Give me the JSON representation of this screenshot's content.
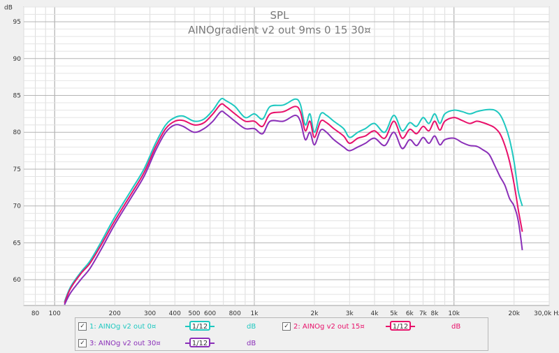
{
  "chart_data": {
    "type": "line",
    "title": "SPL",
    "subtitle": "AINOgradient v2 out 9ms 0 15 30¤",
    "ylabel": "dB",
    "xlabel": "Hz",
    "x_scale": "log",
    "xlim": [
      70,
      30000
    ],
    "ylim": [
      56.5,
      97
    ],
    "x_ticks": [
      {
        "v": 80,
        "label": "80"
      },
      {
        "v": 100,
        "label": "100"
      },
      {
        "v": 200,
        "label": "200"
      },
      {
        "v": 300,
        "label": "300"
      },
      {
        "v": 400,
        "label": "400"
      },
      {
        "v": 500,
        "label": "500"
      },
      {
        "v": 600,
        "label": "600"
      },
      {
        "v": 800,
        "label": "800"
      },
      {
        "v": 1000,
        "label": "1k"
      },
      {
        "v": 2000,
        "label": "2k"
      },
      {
        "v": 3000,
        "label": "3k"
      },
      {
        "v": 4000,
        "label": "4k"
      },
      {
        "v": 5000,
        "label": "5k"
      },
      {
        "v": 6000,
        "label": "6k"
      },
      {
        "v": 7000,
        "label": "7k"
      },
      {
        "v": 8000,
        "label": "8k"
      },
      {
        "v": 10000,
        "label": "10k"
      },
      {
        "v": 20000,
        "label": "20k"
      },
      {
        "v": 30000,
        "label": "30,0k Hz"
      }
    ],
    "y_ticks": [
      60,
      65,
      70,
      75,
      80,
      85,
      90,
      95
    ],
    "grid": true,
    "series": [
      {
        "name": "1: AINOg v2 out 0¤",
        "color": "#1ec8c0",
        "x": [
          112,
          120,
          135,
          150,
          170,
          200,
          240,
          280,
          320,
          360,
          400,
          440,
          500,
          560,
          620,
          680,
          720,
          800,
          900,
          1000,
          1100,
          1200,
          1400,
          1600,
          1700,
          1800,
          1900,
          2000,
          2150,
          2300,
          2500,
          2800,
          3000,
          3300,
          3600,
          4000,
          4500,
          5000,
          5500,
          6000,
          6500,
          7000,
          7500,
          8000,
          8500,
          9000,
          10000,
          11000,
          12000,
          13000,
          14000,
          15000,
          16000,
          17000,
          18000,
          19000,
          20000,
          21000,
          22000
        ],
        "y": [
          57,
          59,
          61,
          62.5,
          65,
          68.5,
          72,
          75,
          78.5,
          81,
          82,
          82.2,
          81.5,
          81.8,
          83,
          84.5,
          84.3,
          83.5,
          82,
          82.5,
          81.8,
          83.5,
          83.7,
          84.5,
          83.8,
          81,
          82.5,
          80,
          82.5,
          82.3,
          81.5,
          80.5,
          79.3,
          80,
          80.5,
          81.2,
          80,
          82.3,
          80.2,
          81.3,
          80.8,
          82,
          81.2,
          82.5,
          81.2,
          82.5,
          83,
          82.8,
          82.5,
          82.8,
          83,
          83.1,
          83,
          82.4,
          81,
          79,
          76,
          72,
          70
        ]
      },
      {
        "name": "2: AINOg v2 out 15¤",
        "color": "#e8106a",
        "x": [
          112,
          120,
          135,
          150,
          170,
          200,
          240,
          280,
          320,
          360,
          400,
          440,
          500,
          560,
          620,
          680,
          720,
          800,
          900,
          1000,
          1100,
          1200,
          1400,
          1600,
          1700,
          1800,
          1900,
          2000,
          2150,
          2300,
          2500,
          2800,
          3000,
          3300,
          3600,
          4000,
          4500,
          5000,
          5500,
          6000,
          6500,
          7000,
          7500,
          8000,
          8500,
          9000,
          10000,
          11000,
          12000,
          13000,
          14000,
          15000,
          16000,
          17000,
          18000,
          19000,
          20000,
          21000,
          22000
        ],
        "y": [
          56.8,
          58.8,
          60.8,
          62.2,
          64.6,
          68,
          71.5,
          74.5,
          78,
          80.5,
          81.5,
          81.6,
          81,
          81.3,
          82.5,
          83.8,
          83.5,
          82.5,
          81.5,
          81.5,
          80.8,
          82.5,
          82.8,
          83.5,
          82.8,
          80.2,
          81.5,
          79.3,
          81.5,
          81.3,
          80.5,
          79.5,
          78.5,
          79.2,
          79.5,
          80.2,
          79.2,
          81.5,
          79.2,
          80.4,
          79.8,
          80.8,
          80.2,
          81.5,
          80.3,
          81.5,
          82,
          81.6,
          81.2,
          81.5,
          81.3,
          81,
          80.6,
          79.8,
          78.2,
          76,
          73,
          69.5,
          66.5
        ]
      },
      {
        "name": "3: AINOg v2 out 30¤",
        "color": "#8a2fb8",
        "x": [
          112,
          120,
          135,
          150,
          170,
          200,
          240,
          280,
          320,
          360,
          400,
          440,
          500,
          560,
          620,
          680,
          720,
          800,
          900,
          1000,
          1100,
          1200,
          1400,
          1600,
          1700,
          1800,
          1900,
          2000,
          2150,
          2300,
          2500,
          2800,
          3000,
          3300,
          3600,
          4000,
          4500,
          5000,
          5500,
          6000,
          6500,
          7000,
          7500,
          8000,
          8500,
          9000,
          10000,
          11000,
          12000,
          13000,
          14000,
          15000,
          16000,
          17000,
          18000,
          19000,
          20000,
          21000,
          22000
        ],
        "y": [
          56.6,
          58.2,
          60,
          61.5,
          64,
          67.5,
          71,
          74,
          77.5,
          80,
          81,
          80.8,
          80,
          80.5,
          81.5,
          82.8,
          82.5,
          81.5,
          80.5,
          80.5,
          79.8,
          81.5,
          81.5,
          82.3,
          81.5,
          79,
          80,
          78.3,
          80.3,
          80,
          79,
          78,
          77.5,
          78,
          78.5,
          79.2,
          78.2,
          80,
          77.8,
          79,
          78.2,
          79.3,
          78.5,
          79.5,
          78.3,
          79,
          79.2,
          78.6,
          78.2,
          78.1,
          77.6,
          77,
          75.5,
          74,
          72.8,
          71,
          70,
          68,
          64
        ]
      }
    ]
  },
  "legend": {
    "items": [
      {
        "label": "1: AINOg v2 out 0¤",
        "smoothing": "1/12",
        "unit": "dB",
        "color": "#1ec8c0",
        "checked": "✓"
      },
      {
        "label": "2: AINOg v2 out 15¤",
        "smoothing": "1/12",
        "unit": "dB",
        "color": "#e8106a",
        "checked": "✓"
      },
      {
        "label": "3: AINOg v2 out 30¤",
        "smoothing": "1/12",
        "unit": "dB",
        "color": "#8a2fb8",
        "checked": "✓"
      }
    ]
  }
}
